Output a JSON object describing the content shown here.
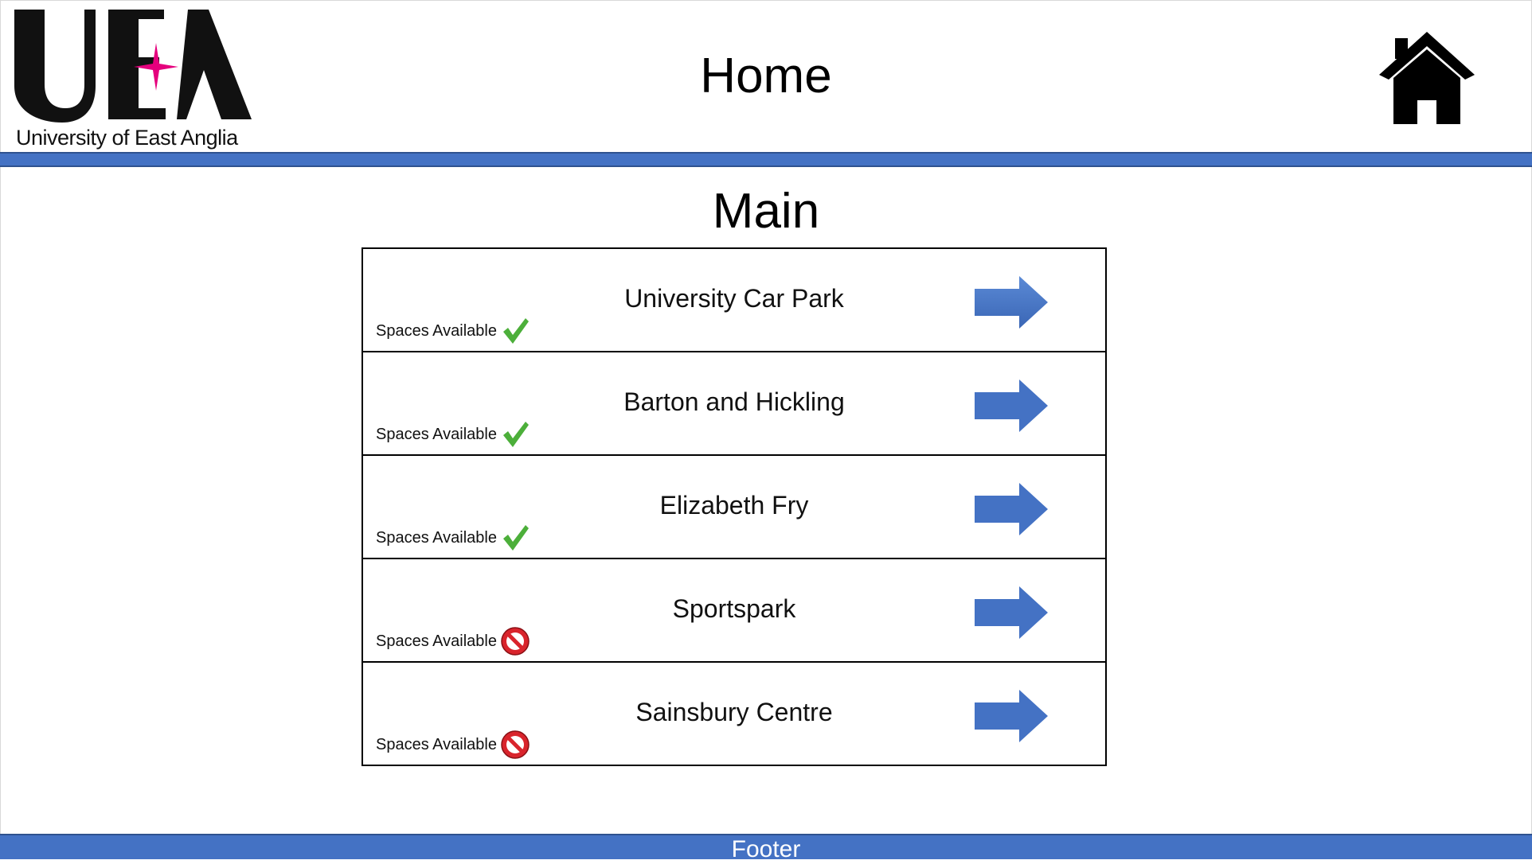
{
  "header": {
    "logo_caption": "University of East Anglia",
    "title": "Home",
    "home_icon": "home-icon"
  },
  "main": {
    "title": "Main",
    "car_parks": [
      {
        "name": "University Car Park",
        "status_label": "Spaces Available",
        "status": "available",
        "status_icon": "check-icon"
      },
      {
        "name": "Barton and Hickling",
        "status_label": "Spaces Available",
        "status": "available",
        "status_icon": "check-icon"
      },
      {
        "name": "Elizabeth Fry",
        "status_label": "Spaces Available",
        "status": "available",
        "status_icon": "check-icon"
      },
      {
        "name": "Sportspark",
        "status_label": "Spaces Available",
        "status": "unavailable",
        "status_icon": "prohibited-icon"
      },
      {
        "name": "Sainsbury Centre",
        "status_label": "Spaces Available",
        "status": "unavailable",
        "status_icon": "prohibited-icon"
      }
    ],
    "arrow_icon": "arrow-right-icon"
  },
  "footer": {
    "label": "Footer"
  },
  "colors": {
    "brand_blue": "#4472c4",
    "logo_accent": "#e5007d",
    "available": "#4caf3a",
    "unavailable": "#d9242c"
  }
}
